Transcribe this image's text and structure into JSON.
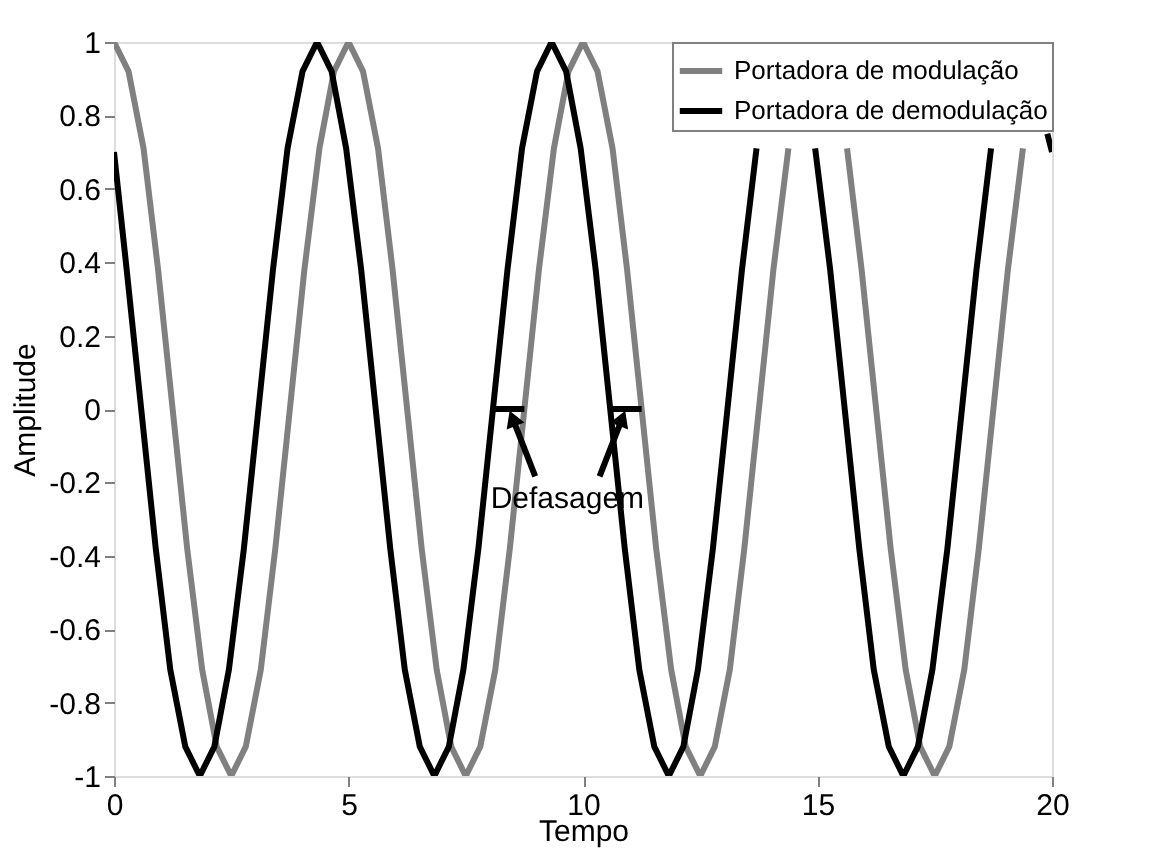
{
  "chart_data": {
    "type": "line",
    "xlabel": "Tempo",
    "ylabel": "Amplitude",
    "xlim": [
      0,
      20
    ],
    "ylim": [
      -1,
      1
    ],
    "xticks": [
      0,
      5,
      10,
      15,
      20
    ],
    "yticks": [
      -1,
      -0.8,
      -0.6,
      -0.4,
      -0.2,
      0,
      0.2,
      0.4,
      0.6,
      0.8,
      1
    ],
    "grid": false,
    "legend": "top right",
    "marker": "none",
    "line_style": "solid",
    "annotations": [
      {
        "text": "Defasagem",
        "x": 8.42,
        "y": 0
      }
    ],
    "series": [
      {
        "name": "Portadora de modulação",
        "color": "#808080",
        "x": [
          0,
          0.31,
          0.63,
          0.94,
          1.25,
          1.56,
          1.88,
          2.19,
          2.5,
          2.81,
          3.13,
          3.44,
          3.75,
          4.06,
          4.38,
          4.69,
          5,
          5.31,
          5.63,
          5.94,
          6.25,
          6.56,
          6.88,
          7.19,
          7.5,
          7.81,
          8.13,
          8.44,
          8.75,
          9.06,
          9.38,
          9.69,
          10,
          10.31,
          10.63,
          10.94,
          11.25,
          11.56,
          11.88,
          12.19,
          12.5,
          12.81,
          13.13,
          13.44,
          13.75,
          14.06,
          14.38,
          14.69,
          15,
          15.31,
          15.63,
          15.94,
          16.25,
          16.56,
          16.88,
          17.19,
          17.5,
          17.81,
          18.13,
          18.44,
          18.75,
          19.06,
          19.38
        ],
        "values": [
          1,
          0.92,
          0.71,
          0.38,
          0,
          -0.38,
          -0.71,
          -0.92,
          -1,
          -0.92,
          -0.71,
          -0.38,
          0,
          0.38,
          0.71,
          0.92,
          1,
          0.92,
          0.71,
          0.38,
          0,
          -0.38,
          -0.71,
          -0.92,
          -1,
          -0.92,
          -0.71,
          -0.38,
          0,
          0.38,
          0.71,
          0.92,
          1,
          0.92,
          0.71,
          0.38,
          0,
          -0.38,
          -0.71,
          -0.92,
          -1,
          -0.92,
          -0.71,
          -0.38,
          0,
          0.38,
          0.71,
          null,
          null,
          null,
          0.71,
          0.38,
          0,
          -0.38,
          -0.71,
          -0.92,
          -1,
          -0.92,
          -0.71,
          -0.38,
          0,
          0.38,
          0.71
        ]
      },
      {
        "name": "Portadora de demodulação",
        "color": "#000000",
        "x": [
          0,
          0.27,
          0.58,
          0.89,
          1.2,
          1.52,
          1.83,
          2.14,
          2.45,
          2.77,
          3.08,
          3.39,
          3.7,
          4.02,
          4.33,
          4.64,
          4.95,
          5.27,
          5.58,
          5.89,
          6.2,
          6.52,
          6.83,
          7.14,
          7.45,
          7.77,
          8.08,
          8.39,
          8.7,
          9.02,
          9.33,
          9.64,
          9.95,
          10.27,
          10.58,
          10.89,
          11.2,
          11.52,
          11.83,
          12.14,
          12.45,
          12.77,
          13.08,
          13.39,
          13.7,
          14.02,
          14.33,
          14.64,
          14.95,
          15.27,
          15.58,
          15.89,
          16.2,
          16.52,
          16.83,
          17.14,
          17.45,
          17.77,
          18.08,
          18.39,
          18.7,
          19.02,
          19.33,
          19.64,
          19.9,
          20
        ],
        "values": [
          0.7,
          0.38,
          0,
          -0.38,
          -0.71,
          -0.92,
          -1,
          -0.92,
          -0.71,
          -0.38,
          0,
          0.38,
          0.71,
          0.92,
          1,
          0.92,
          0.71,
          0.38,
          0,
          -0.38,
          -0.71,
          -0.92,
          -1,
          -0.92,
          -0.71,
          -0.38,
          0,
          0.38,
          0.71,
          0.92,
          1,
          0.92,
          0.71,
          0.38,
          0,
          -0.38,
          -0.71,
          -0.92,
          -1,
          -0.92,
          -0.71,
          -0.38,
          0,
          0.38,
          0.71,
          null,
          null,
          null,
          0.71,
          0.38,
          0,
          -0.38,
          -0.71,
          -0.92,
          -1,
          -0.92,
          -0.71,
          -0.38,
          0,
          0.38,
          0.71,
          null,
          null,
          null,
          0.75,
          0.7
        ]
      },
      {
        "color": "#000000",
        "x": [
          8.08,
          8.75
        ],
        "values": [
          0,
          0
        ]
      },
      {
        "color": "#000000",
        "x": [
          10.58,
          11.25
        ],
        "values": [
          0,
          0
        ]
      }
    ]
  }
}
